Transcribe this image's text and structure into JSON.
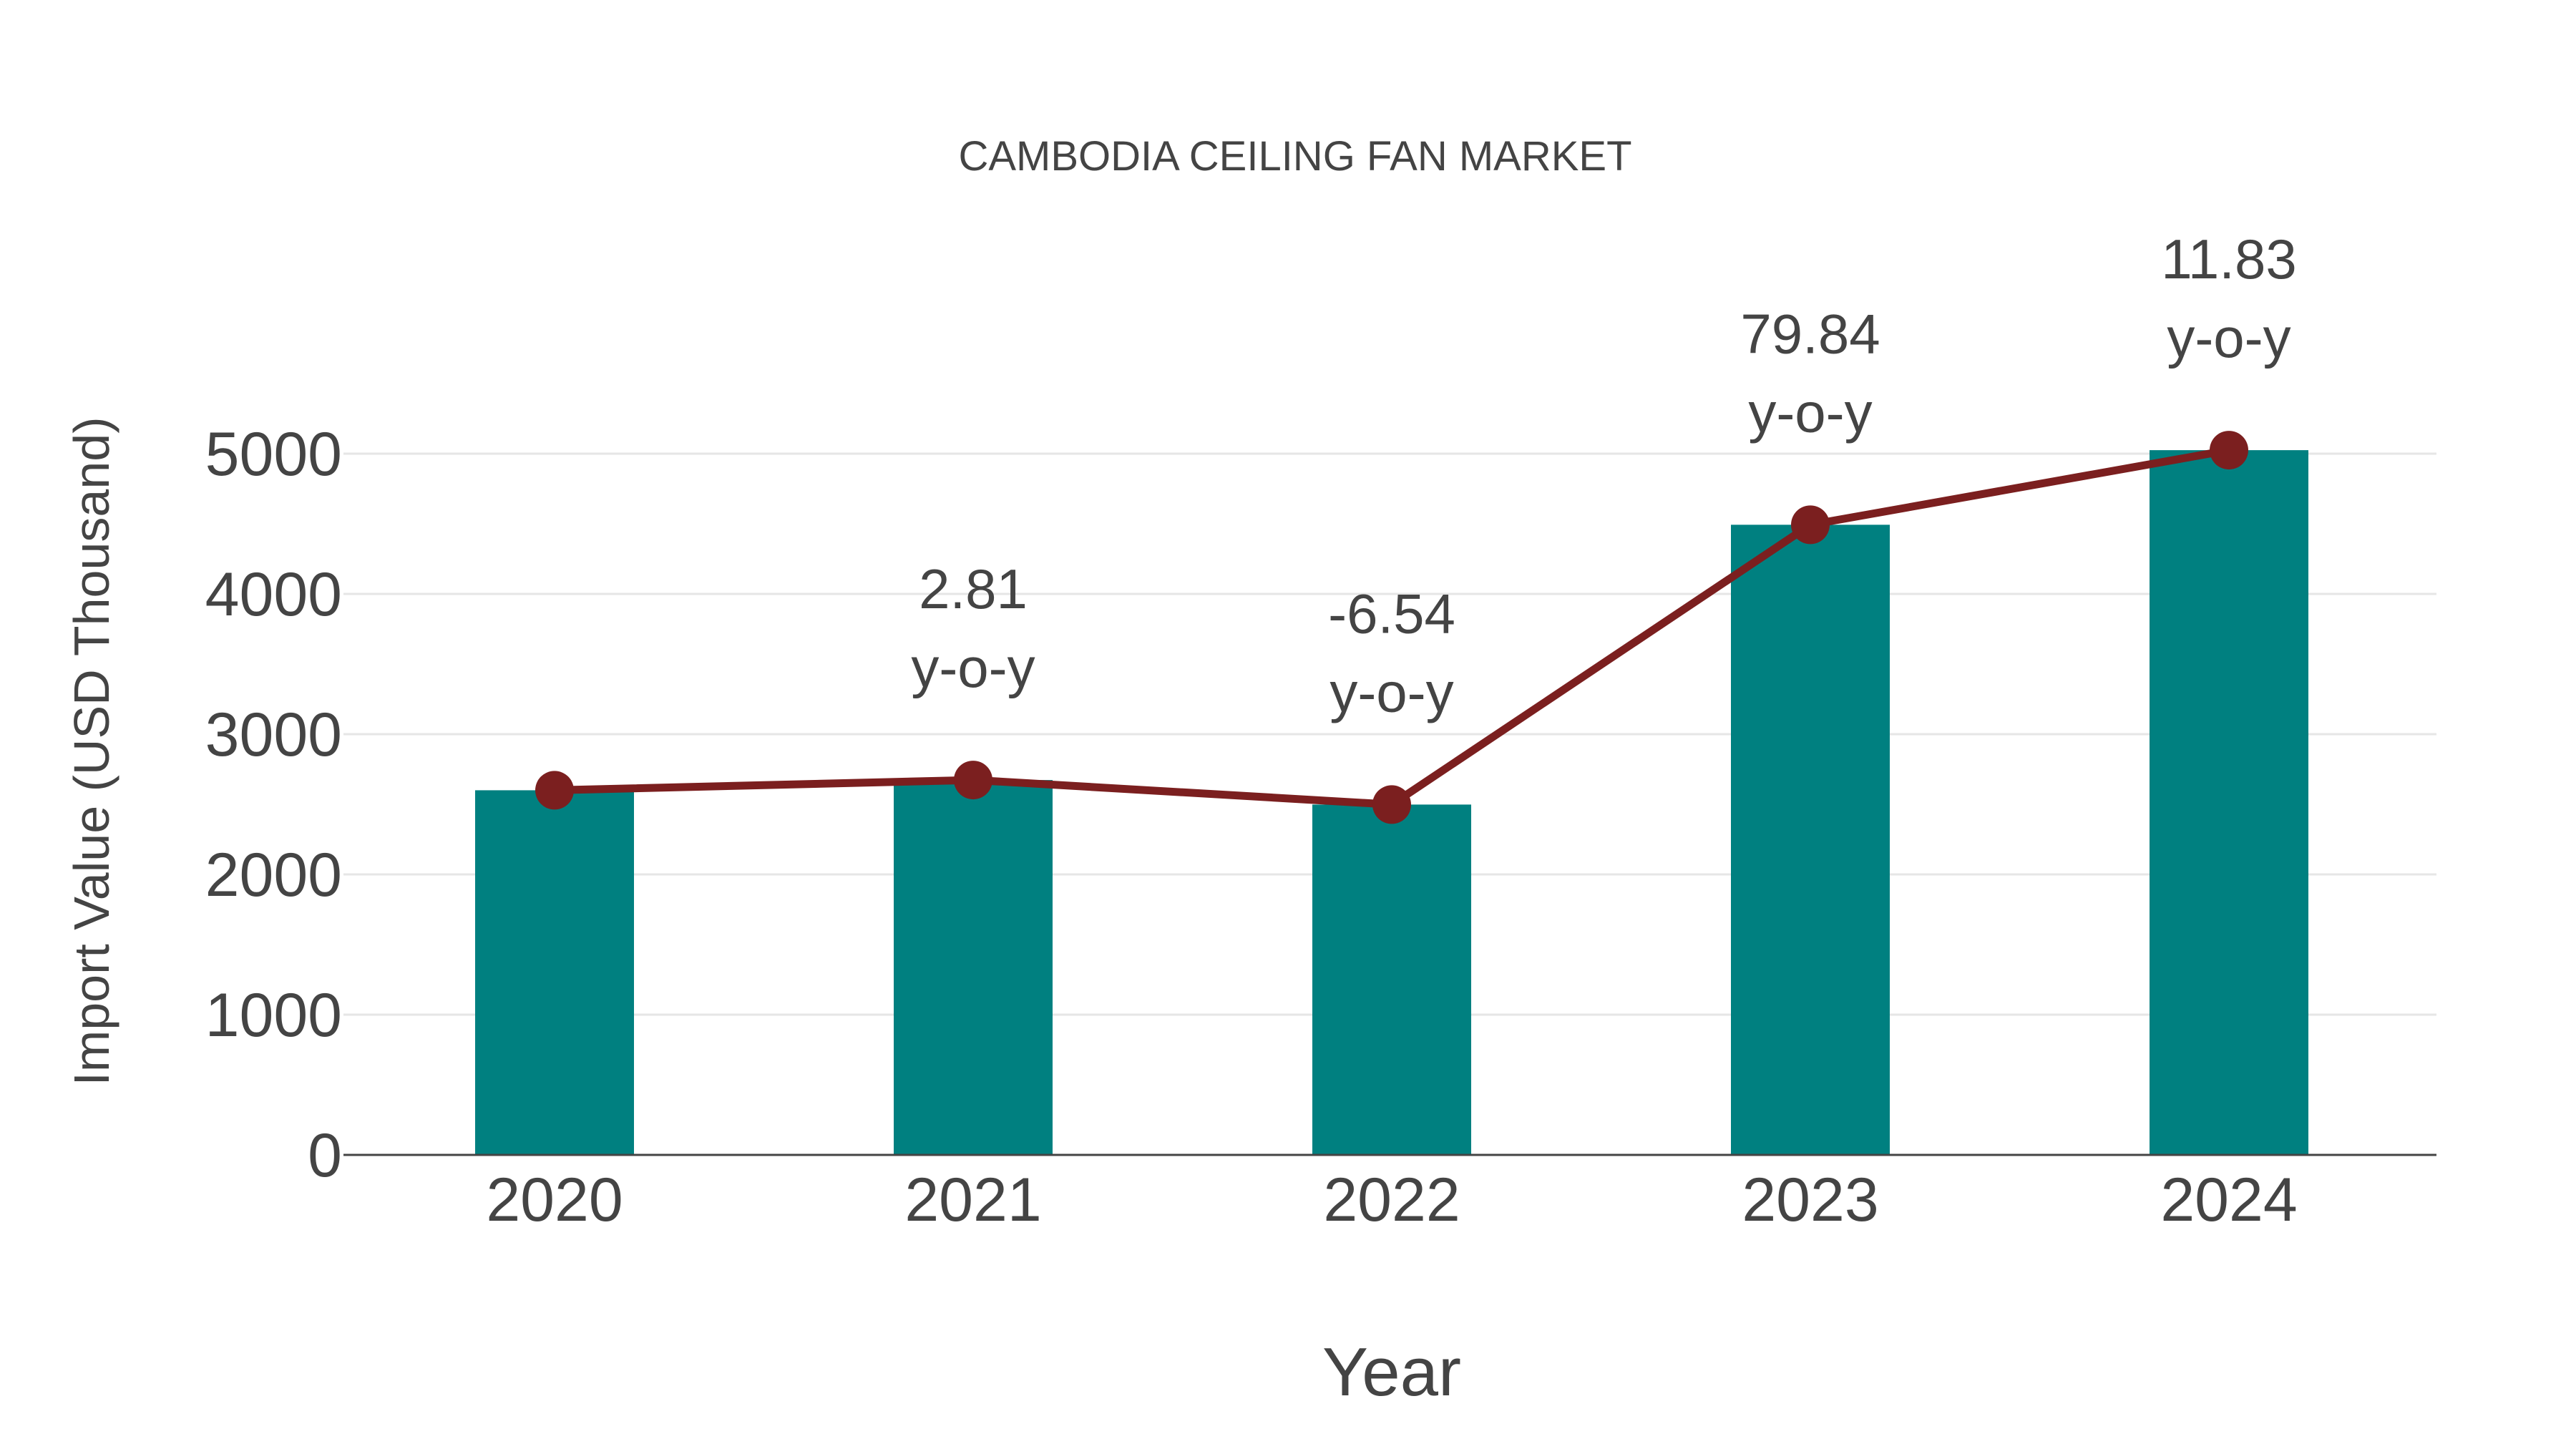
{
  "chart_data": {
    "type": "bar+line",
    "title": "CAMBODIA CEILING FAN MARKET",
    "xlabel": "Year",
    "ylabel": "Import Value (USD Thousand)",
    "categories": [
      "2020",
      "2021",
      "2022",
      "2023",
      "2024"
    ],
    "series": [
      {
        "name": "Import Value",
        "type": "bar",
        "color": "#008080",
        "values": [
          2600,
          2673,
          2498,
          4493,
          5025
        ]
      },
      {
        "name": "Trend",
        "type": "line",
        "color": "#7b1f1f",
        "values": [
          2600,
          2673,
          2498,
          4493,
          5025
        ]
      }
    ],
    "annotations": [
      {
        "category": "2021",
        "value": "2.81",
        "suffix": "y-o-y"
      },
      {
        "category": "2022",
        "value": "-6.54",
        "suffix": "y-o-y"
      },
      {
        "category": "2023",
        "value": "79.84",
        "suffix": "y-o-y"
      },
      {
        "category": "2024",
        "value": "11.83",
        "suffix": "y-o-y"
      }
    ],
    "yticks": [
      0,
      1000,
      2000,
      3000,
      4000,
      5000
    ],
    "ylim": [
      0,
      5750
    ],
    "grid": true,
    "legend": "none"
  },
  "colors": {
    "bar": "#008080",
    "line": "#7b1f1f",
    "grid": "#e6e6e6",
    "axis": "#444444",
    "text": "#444444"
  }
}
